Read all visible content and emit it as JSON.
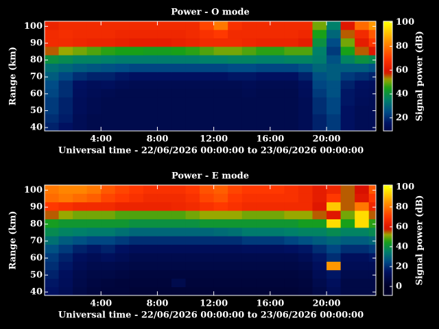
{
  "chart_data": [
    {
      "type": "heatmap",
      "title": "Power - O mode",
      "xlabel": "Universal time - 22/06/2026 00:00:00 to 23/06/2026 00:00:00",
      "ylabel": "Range (km)",
      "colorbar_label": "Signal power (dB)",
      "xlim": [
        0,
        23.5
      ],
      "ylim": [
        38,
        103
      ],
      "clim": [
        9,
        101
      ],
      "xticks": [
        {
          "value": 4,
          "label": "4:00"
        },
        {
          "value": 8,
          "label": "8:00"
        },
        {
          "value": 12,
          "label": "12:00"
        },
        {
          "value": 16,
          "label": "16:00"
        },
        {
          "value": 20,
          "label": "20:00"
        }
      ],
      "yticks": [
        40,
        50,
        60,
        70,
        80,
        90,
        100
      ],
      "cticks": [
        20,
        40,
        60,
        80,
        100
      ],
      "colorscale": [
        [
          0,
          "#000028"
        ],
        [
          15,
          "#001060"
        ],
        [
          25,
          "#004c86"
        ],
        [
          35,
          "#00806a"
        ],
        [
          45,
          "#18a018"
        ],
        [
          52,
          "#98a800"
        ],
        [
          58,
          "#d81000"
        ],
        [
          70,
          "#ff3800"
        ],
        [
          85,
          "#ff9800"
        ],
        [
          100,
          "#ffff00"
        ]
      ],
      "x_bins": [
        0,
        1,
        2,
        3,
        4,
        5,
        6,
        7,
        8,
        9,
        10,
        11,
        12,
        13,
        14,
        15,
        16,
        17,
        18,
        19,
        20,
        21,
        22,
        23,
        23.5
      ],
      "y_bins": [
        38,
        43,
        48,
        53,
        58,
        63,
        68,
        73,
        78,
        83,
        88,
        93,
        98,
        103
      ],
      "values": [
        [
          18,
          15,
          12,
          10,
          10,
          10,
          10,
          10,
          10,
          10,
          10,
          10,
          10,
          10,
          10,
          10,
          10,
          10,
          12,
          18,
          22,
          15,
          12,
          12
        ],
        [
          20,
          17,
          12,
          10,
          10,
          10,
          10,
          10,
          10,
          10,
          10,
          10,
          10,
          10,
          10,
          10,
          10,
          10,
          12,
          18,
          22,
          15,
          12,
          12
        ],
        [
          22,
          18,
          13,
          11,
          10,
          10,
          10,
          10,
          10,
          10,
          10,
          10,
          10,
          10,
          10,
          10,
          10,
          10,
          12,
          20,
          24,
          15,
          12,
          12
        ],
        [
          22,
          18,
          13,
          11,
          10,
          10,
          10,
          10,
          10,
          10,
          10,
          10,
          10,
          10,
          10,
          10,
          10,
          10,
          12,
          20,
          24,
          16,
          13,
          12
        ],
        [
          24,
          20,
          14,
          12,
          11,
          10,
          10,
          10,
          10,
          10,
          10,
          10,
          10,
          10,
          11,
          10,
          10,
          10,
          13,
          22,
          26,
          16,
          14,
          13
        ],
        [
          25,
          20,
          15,
          13,
          14,
          12,
          11,
          11,
          11,
          11,
          11,
          11,
          11,
          11,
          12,
          11,
          11,
          11,
          14,
          24,
          26,
          18,
          15,
          14
        ],
        [
          28,
          24,
          20,
          18,
          18,
          16,
          15,
          15,
          15,
          15,
          15,
          15,
          15,
          16,
          16,
          15,
          15,
          15,
          18,
          26,
          28,
          22,
          20,
          18
        ],
        [
          32,
          30,
          28,
          27,
          26,
          25,
          24,
          24,
          24,
          24,
          24,
          24,
          24,
          25,
          25,
          24,
          24,
          24,
          26,
          30,
          28,
          28,
          28,
          26
        ],
        [
          40,
          38,
          36,
          36,
          35,
          34,
          34,
          34,
          34,
          34,
          34,
          35,
          35,
          36,
          36,
          35,
          35,
          36,
          36,
          34,
          26,
          36,
          40,
          38
        ],
        [
          55,
          52,
          50,
          48,
          46,
          45,
          45,
          44,
          44,
          45,
          46,
          48,
          50,
          50,
          48,
          46,
          46,
          48,
          48,
          35,
          22,
          45,
          55,
          60
        ],
        [
          66,
          66,
          65,
          64,
          64,
          63,
          62,
          62,
          62,
          63,
          64,
          66,
          66,
          66,
          65,
          64,
          64,
          64,
          62,
          40,
          25,
          50,
          62,
          70
        ],
        [
          66,
          67,
          66,
          66,
          66,
          65,
          65,
          65,
          65,
          65,
          66,
          68,
          70,
          66,
          66,
          66,
          66,
          66,
          65,
          45,
          30,
          55,
          66,
          75
        ],
        [
          64,
          66,
          66,
          66,
          66,
          66,
          66,
          66,
          66,
          66,
          66,
          72,
          80,
          68,
          66,
          66,
          66,
          66,
          66,
          50,
          35,
          60,
          78,
          85
        ]
      ]
    },
    {
      "type": "heatmap",
      "title": "Power - E mode",
      "xlabel": "Universal time - 22/06/2026 00:00:00 to 23/06/2026 00:00:00",
      "ylabel": "Range (km)",
      "colorbar_label": "Signal power (dB)",
      "xlim": [
        0,
        23.5
      ],
      "ylim": [
        38,
        103
      ],
      "clim": [
        -9,
        102
      ],
      "xticks": [
        {
          "value": 4,
          "label": "4:00"
        },
        {
          "value": 8,
          "label": "8:00"
        },
        {
          "value": 12,
          "label": "12:00"
        },
        {
          "value": 16,
          "label": "16:00"
        },
        {
          "value": 20,
          "label": "20:00"
        }
      ],
      "yticks": [
        40,
        50,
        60,
        70,
        80,
        90,
        100
      ],
      "cticks": [
        0,
        20,
        40,
        60,
        80,
        100
      ],
      "colorscale": [
        [
          0,
          "#000028"
        ],
        [
          15,
          "#001060"
        ],
        [
          25,
          "#004c86"
        ],
        [
          35,
          "#00806a"
        ],
        [
          45,
          "#18a018"
        ],
        [
          52,
          "#98a800"
        ],
        [
          58,
          "#d81000"
        ],
        [
          70,
          "#ff3800"
        ],
        [
          85,
          "#ff9800"
        ],
        [
          100,
          "#ffff00"
        ]
      ],
      "x_bins": [
        0,
        1,
        2,
        3,
        4,
        5,
        6,
        7,
        8,
        9,
        10,
        11,
        12,
        13,
        14,
        15,
        16,
        17,
        18,
        19,
        20,
        21,
        22,
        23,
        23.5
      ],
      "y_bins": [
        38,
        43,
        48,
        53,
        58,
        63,
        68,
        73,
        78,
        83,
        88,
        93,
        98,
        103
      ],
      "values": [
        [
          15,
          12,
          8,
          6,
          5,
          5,
          4,
          4,
          4,
          4,
          4,
          4,
          4,
          4,
          4,
          4,
          4,
          4,
          5,
          8,
          12,
          8,
          8,
          8
        ],
        [
          16,
          13,
          9,
          7,
          6,
          5,
          5,
          5,
          5,
          10,
          5,
          5,
          5,
          5,
          5,
          5,
          5,
          5,
          6,
          10,
          14,
          8,
          8,
          8
        ],
        [
          18,
          14,
          10,
          8,
          8,
          7,
          6,
          6,
          6,
          6,
          6,
          6,
          6,
          6,
          6,
          6,
          6,
          6,
          7,
          12,
          16,
          10,
          10,
          10
        ],
        [
          20,
          16,
          12,
          10,
          10,
          9,
          8,
          8,
          8,
          8,
          8,
          8,
          8,
          8,
          8,
          8,
          8,
          8,
          9,
          14,
          85,
          12,
          12,
          12
        ],
        [
          22,
          18,
          14,
          12,
          14,
          12,
          10,
          10,
          10,
          10,
          10,
          10,
          10,
          10,
          10,
          10,
          10,
          10,
          12,
          16,
          20,
          14,
          14,
          16
        ],
        [
          26,
          22,
          18,
          16,
          18,
          15,
          13,
          13,
          13,
          13,
          13,
          13,
          13,
          13,
          14,
          14,
          14,
          15,
          16,
          20,
          24,
          20,
          20,
          22
        ],
        [
          32,
          28,
          26,
          24,
          24,
          22,
          20,
          20,
          20,
          20,
          20,
          20,
          20,
          20,
          22,
          22,
          22,
          24,
          26,
          28,
          30,
          28,
          28,
          30
        ],
        [
          38,
          36,
          35,
          34,
          34,
          32,
          30,
          30,
          30,
          30,
          30,
          30,
          31,
          32,
          34,
          34,
          34,
          35,
          36,
          36,
          38,
          36,
          36,
          38
        ],
        [
          44,
          42,
          42,
          42,
          42,
          42,
          40,
          40,
          40,
          40,
          40,
          42,
          42,
          42,
          42,
          42,
          42,
          42,
          44,
          44,
          95,
          45,
          95,
          46
        ],
        [
          55,
          52,
          50,
          50,
          50,
          48,
          48,
          48,
          48,
          48,
          50,
          52,
          52,
          52,
          50,
          50,
          50,
          52,
          52,
          55,
          60,
          50,
          95,
          55
        ],
        [
          70,
          68,
          66,
          66,
          66,
          64,
          64,
          64,
          64,
          65,
          66,
          68,
          70,
          68,
          66,
          66,
          66,
          66,
          66,
          60,
          92,
          55,
          80,
          65
        ],
        [
          78,
          80,
          78,
          76,
          72,
          70,
          68,
          66,
          66,
          66,
          68,
          72,
          74,
          70,
          68,
          68,
          68,
          68,
          66,
          62,
          70,
          55,
          60,
          70
        ],
        [
          80,
          82,
          82,
          80,
          75,
          72,
          70,
          68,
          68,
          68,
          70,
          74,
          76,
          72,
          70,
          70,
          70,
          68,
          66,
          62,
          65,
          55,
          58,
          75
        ]
      ]
    }
  ]
}
